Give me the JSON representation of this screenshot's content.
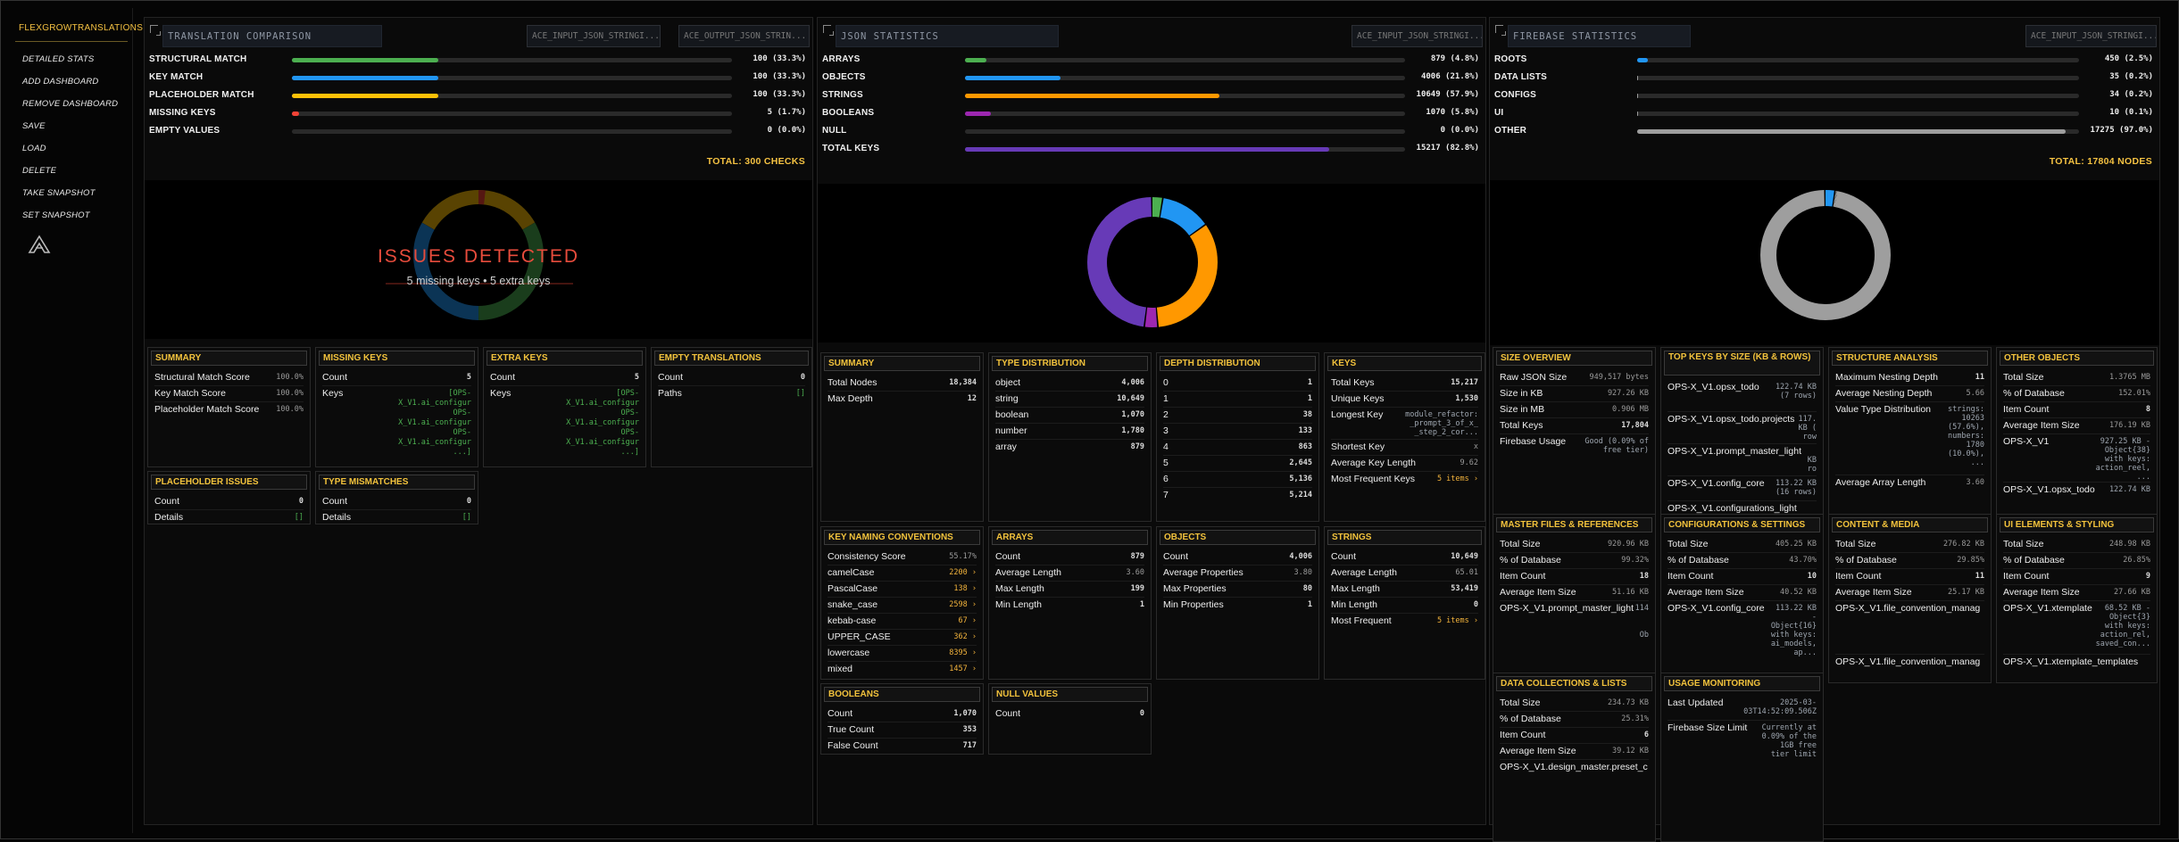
{
  "app": {
    "title": "FLEXGROWTRANSLATIONS"
  },
  "sidebar": {
    "items": [
      "DETAILED STATS",
      "ADD DASHBOARD",
      "REMOVE DASHBOARD",
      "SAVE",
      "LOAD",
      "DELETE",
      "TAKE SNAPSHOT",
      "SET SNAPSHOT"
    ]
  },
  "colors": {
    "accent": "#f5c242",
    "green": "#4caf50",
    "blue": "#2196f3",
    "yellow": "#ffc107",
    "red": "#f44336",
    "orange": "#ff9800",
    "purple": "#673ab7",
    "gray": "#9e9e9e"
  },
  "p1": {
    "title": "TRANSLATION COMPARISON",
    "select1": "ACE_INPUT_JSON_STRINGI...",
    "select2": "ACE_OUTPUT_JSON_STRIN...",
    "bars": [
      {
        "label": "STRUCTURAL MATCH",
        "value": "100 (33.3%)",
        "pct": 0.333,
        "color": "#4caf50"
      },
      {
        "label": "KEY MATCH",
        "value": "100 (33.3%)",
        "pct": 0.333,
        "color": "#2196f3"
      },
      {
        "label": "PLACEHOLDER MATCH",
        "value": "100 (33.3%)",
        "pct": 0.333,
        "color": "#ffc107"
      },
      {
        "label": "MISSING KEYS",
        "value": "5 (1.7%)",
        "pct": 0.017,
        "color": "#f44336"
      },
      {
        "label": "EMPTY VALUES",
        "value": "0 (0.0%)",
        "pct": 0,
        "color": "#9e9e9e"
      }
    ],
    "total": "TOTAL: 300 CHECKS",
    "issues_title": "ISSUES DETECTED",
    "issues_sub": "5 missing keys • 5 extra keys",
    "cards": {
      "summary": {
        "title": "SUMMARY",
        "rows": [
          [
            "Structural Match Score",
            "100.0%"
          ],
          [
            "Key Match Score",
            "100.0%"
          ],
          [
            "Placeholder Match Score",
            "100.0%"
          ]
        ]
      },
      "missing": {
        "title": "MISSING KEYS",
        "count_k": "Count",
        "count_v": "5",
        "keys_k": "Keys",
        "keys_v": "[OPS-\nX_V1.ai_configur\nOPS-\nX_V1.ai_configur\nOPS-\nX_V1.ai_configur\n...]"
      },
      "extra": {
        "title": "EXTRA KEYS",
        "count_k": "Count",
        "count_v": "5",
        "keys_k": "Keys",
        "keys_v": "[OPS-\nX_V1.ai_configur\nOPS-\nX_V1.ai_configur\nOPS-\nX_V1.ai_configur\n...]"
      },
      "empty": {
        "title": "EMPTY TRANSLATIONS",
        "rows": [
          [
            "Count",
            "0"
          ],
          [
            "Paths",
            "[]"
          ]
        ]
      },
      "placeholder": {
        "title": "PLACEHOLDER ISSUES",
        "rows": [
          [
            "Count",
            "0"
          ],
          [
            "Details",
            "[]"
          ]
        ]
      },
      "type": {
        "title": "TYPE MISMATCHES",
        "rows": [
          [
            "Count",
            "0"
          ],
          [
            "Details",
            "[]"
          ]
        ]
      }
    }
  },
  "p2": {
    "title": "JSON STATISTICS",
    "select1": "ACE_INPUT_JSON_STRINGI...",
    "bars": [
      {
        "label": "ARRAYS",
        "value": "879 (4.8%)",
        "pct": 0.048,
        "color": "#4caf50"
      },
      {
        "label": "OBJECTS",
        "value": "4006 (21.8%)",
        "pct": 0.218,
        "color": "#2196f3"
      },
      {
        "label": "STRINGS",
        "value": "10649 (57.9%)",
        "pct": 0.579,
        "color": "#ff9800"
      },
      {
        "label": "BOOLEANS",
        "value": "1070 (5.8%)",
        "pct": 0.058,
        "color": "#9c27b0"
      },
      {
        "label": "NULL",
        "value": "0 (0.0%)",
        "pct": 0,
        "color": "#9e9e9e"
      },
      {
        "label": "TOTAL KEYS",
        "value": "15217 (82.8%)",
        "pct": 0.828,
        "color": "#673ab7"
      }
    ],
    "donut": [
      {
        "value": 879,
        "color": "#4caf50"
      },
      {
        "value": 4006,
        "color": "#2196f3"
      },
      {
        "value": 10649,
        "color": "#ff9800"
      },
      {
        "value": 1070,
        "color": "#9c27b0"
      },
      {
        "value": 15217,
        "color": "#673ab7"
      }
    ],
    "cards": {
      "summary": {
        "title": "SUMMARY",
        "rows": [
          [
            "Total Nodes",
            "18,384"
          ],
          [
            "Max Depth",
            "12"
          ]
        ]
      },
      "typedist": {
        "title": "TYPE DISTRIBUTION",
        "rows": [
          [
            "object",
            "4,006"
          ],
          [
            "string",
            "10,649"
          ],
          [
            "boolean",
            "1,070"
          ],
          [
            "number",
            "1,780"
          ],
          [
            "array",
            "879"
          ]
        ]
      },
      "depth": {
        "title": "DEPTH DISTRIBUTION",
        "rows": [
          [
            "0",
            "1"
          ],
          [
            "1",
            "1"
          ],
          [
            "2",
            "38"
          ],
          [
            "3",
            "133"
          ],
          [
            "4",
            "863"
          ],
          [
            "5",
            "2,645"
          ],
          [
            "6",
            "5,136"
          ],
          [
            "7",
            "5,214"
          ]
        ]
      },
      "keys": {
        "title": "KEYS",
        "rows": [
          [
            "Total Keys",
            "15,217"
          ],
          [
            "Unique Keys",
            "1,530"
          ]
        ],
        "longest_k": "Longest Key",
        "longest_v": "module_refactor:\n_prompt_3_of_x_\n_step_2_cor...",
        "rows2": [
          [
            "Shortest Key",
            "x"
          ],
          [
            "Average Key Length",
            "9.62"
          ],
          [
            "Most Frequent Keys",
            "5 items ›"
          ]
        ]
      },
      "naming": {
        "title": "KEY NAMING CONVENTIONS",
        "rows": [
          [
            "Consistency Score",
            "55.17%"
          ],
          [
            "camelCase",
            "2200 ›"
          ],
          [
            "PascalCase",
            "138 ›"
          ],
          [
            "snake_case",
            "2598 ›"
          ],
          [
            "kebab-case",
            "67 ›"
          ],
          [
            "UPPER_CASE",
            "362 ›"
          ],
          [
            "lowercase",
            "8395 ›"
          ],
          [
            "mixed",
            "1457 ›"
          ]
        ]
      },
      "arrays": {
        "title": "ARRAYS",
        "rows": [
          [
            "Count",
            "879"
          ],
          [
            "Average Length",
            "3.60"
          ],
          [
            "Max Length",
            "199"
          ],
          [
            "Min Length",
            "1"
          ]
        ]
      },
      "objects": {
        "title": "OBJECTS",
        "rows": [
          [
            "Count",
            "4,006"
          ],
          [
            "Average Properties",
            "3.80"
          ],
          [
            "Max Properties",
            "80"
          ],
          [
            "Min Properties",
            "1"
          ]
        ]
      },
      "strings": {
        "title": "STRINGS",
        "rows": [
          [
            "Count",
            "10,649"
          ],
          [
            "Average Length",
            "65.01"
          ],
          [
            "Max Length",
            "53,419"
          ],
          [
            "Min Length",
            "0"
          ],
          [
            "Most Frequent",
            "5 items ›"
          ]
        ]
      },
      "booleans": {
        "title": "BOOLEANS",
        "rows": [
          [
            "Count",
            "1,070"
          ],
          [
            "True Count",
            "353"
          ],
          [
            "False Count",
            "717"
          ]
        ]
      },
      "nulls": {
        "title": "NULL VALUES",
        "rows": [
          [
            "Count",
            "0"
          ]
        ]
      }
    }
  },
  "p3": {
    "title": "FIREBASE STATISTICS",
    "select1": "ACE_INPUT_JSON_STRINGI...",
    "bars": [
      {
        "label": "ROOTS",
        "value": "450 (2.5%)",
        "pct": 0.025,
        "color": "#2196f3"
      },
      {
        "label": "DATA LISTS",
        "value": "35 (0.2%)",
        "pct": 0.002,
        "color": "#9e9e9e"
      },
      {
        "label": "CONFIGS",
        "value": "34 (0.2%)",
        "pct": 0.002,
        "color": "#9e9e9e"
      },
      {
        "label": "UI",
        "value": "10 (0.1%)",
        "pct": 0.001,
        "color": "#9e9e9e"
      },
      {
        "label": "OTHER",
        "value": "17275 (97.0%)",
        "pct": 0.97,
        "color": "#9e9e9e"
      }
    ],
    "total": "TOTAL: 17804 NODES",
    "donut": [
      {
        "value": 450,
        "color": "#2196f3"
      },
      {
        "value": 35,
        "color": "#bdbdbd"
      },
      {
        "value": 34,
        "color": "#e0e0e0"
      },
      {
        "value": 10,
        "color": "#cfd8dc"
      },
      {
        "value": 17275,
        "color": "#9e9e9e"
      }
    ],
    "cards": {
      "size": {
        "title": "SIZE OVERVIEW",
        "rows": [
          [
            "Raw JSON Size",
            "949,517 bytes"
          ],
          [
            "Size in KB",
            "927.26 KB"
          ],
          [
            "Size in MB",
            "0.906 MB"
          ],
          [
            "Total Keys",
            "17,804"
          ]
        ],
        "fb_k": "Firebase Usage",
        "fb_v": "Good (0.09% of\nfree tier)"
      },
      "topkeys": {
        "title": "TOP KEYS BY SIZE (KB & ROWS)",
        "items": [
          [
            "OPS-X_V1.opsx_todo",
            "122.74 KB\n(7 rows)"
          ],
          [
            "OPS-X_V1.opsx_todo.projects",
            "117.\nKB (\nrow"
          ],
          [
            "OPS-X_V1.prompt_master_light",
            "\nKB\nro"
          ],
          [
            "OPS-X_V1.config_core",
            "113.22 KB\n(16 rows)"
          ],
          [
            "OPS-X_V1.configurations_light",
            ""
          ]
        ]
      },
      "structure": {
        "title": "STRUCTURE ANALYSIS",
        "rows": [
          [
            "Maximum Nesting Depth",
            "11"
          ],
          [
            "Average Nesting Depth",
            "5.66"
          ]
        ],
        "vt_k": "Value Type Distribution",
        "vt_v": "strings:\n10263\n(57.6%),\nnumbers:\n1780\n(10.0%),\n...",
        "avg_k": "Average Array Length",
        "avg_v": "3.60"
      },
      "other": {
        "title": "OTHER OBJECTS",
        "rows": [
          [
            "Total Size",
            "1.3765 MB"
          ],
          [
            "% of Database",
            "152.01%"
          ],
          [
            "Item Count",
            "8"
          ],
          [
            "Average Item Size",
            "176.19 KB"
          ]
        ],
        "item_k": "OPS-X_V1",
        "item_v": "927.25 KB -\nObject{38}\nwith keys:\naction_reel,\n...",
        "item2": "OPS-X_V1.opsx_todo",
        "item2_v": "122.74 KB"
      },
      "master": {
        "title": "MASTER FILES & REFERENCES",
        "rows": [
          [
            "Total Size",
            "920.96 KB"
          ],
          [
            "% of Database",
            "99.32%"
          ],
          [
            "Item Count",
            "18"
          ],
          [
            "Average Item Size",
            "51.16 KB"
          ]
        ],
        "item_k": "OPS-X_V1.prompt_master_light",
        "item_v": "114\n\n\nOb"
      },
      "configs": {
        "title": "CONFIGURATIONS & SETTINGS",
        "rows": [
          [
            "Total Size",
            "405.25 KB"
          ],
          [
            "% of Database",
            "43.70%"
          ],
          [
            "Item Count",
            "10"
          ],
          [
            "Average Item Size",
            "40.52 KB"
          ]
        ],
        "item_k": "OPS-X_V1.config_core",
        "item_v": "113.22 KB\n-\nObject{16}\nwith keys:\nai_models,\nap..."
      },
      "content": {
        "title": "CONTENT & MEDIA",
        "rows": [
          [
            "Total Size",
            "276.82 KB"
          ],
          [
            "% of Database",
            "29.85%"
          ],
          [
            "Item Count",
            "11"
          ],
          [
            "Average Item Size",
            "25.17 KB"
          ]
        ],
        "item_k": "OPS-X_V1.file_convention_manag",
        "item2": "OPS-X_V1.file_convention_manag"
      },
      "ui": {
        "title": "UI ELEMENTS & STYLING",
        "rows": [
          [
            "Total Size",
            "248.98 KB"
          ],
          [
            "% of Database",
            "26.85%"
          ],
          [
            "Item Count",
            "9"
          ],
          [
            "Average Item Size",
            "27.66 KB"
          ]
        ],
        "item_k": "OPS-X_V1.xtemplate",
        "item_v": "68.52 KB -\nObject{3}\nwith keys:\naction_rel,\nsaved_con...",
        "item2": "OPS-X_V1.xtemplate_templates"
      },
      "collections": {
        "title": "DATA COLLECTIONS & LISTS",
        "rows": [
          [
            "Total Size",
            "234.73 KB"
          ],
          [
            "% of Database",
            "25.31%"
          ],
          [
            "Item Count",
            "6"
          ],
          [
            "Average Item Size",
            "39.12 KB"
          ]
        ],
        "item_k": "OPS-X_V1.design_master.preset_c"
      },
      "usage": {
        "title": "USAGE MONITORING",
        "upd_k": "Last Updated",
        "upd_v": "2025-03-\n03T14:52:09.506Z",
        "lim_k": "Firebase Size Limit",
        "lim_v": "Currently at\n0.09% of the\n1GB free\ntier limit"
      }
    }
  }
}
